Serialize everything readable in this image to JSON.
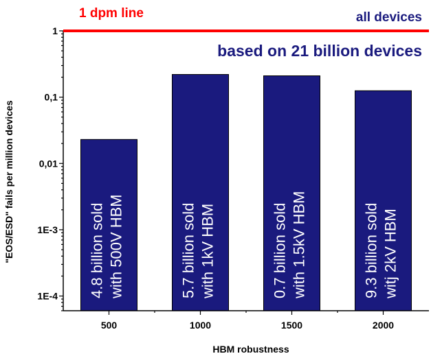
{
  "chart_data": {
    "type": "bar",
    "categories": [
      "500",
      "1000",
      "1500",
      "2000"
    ],
    "values": [
      0.023,
      0.22,
      0.21,
      0.125
    ],
    "bar_labels": [
      [
        "4.8 billion sold",
        "with 500V HBM"
      ],
      [
        "5.7 billion sold",
        "with 1kV HBM"
      ],
      [
        "0.7 billion sold",
        "with 1.5kV HBM"
      ],
      [
        "9.3 billion sold",
        "witj 2kV HBM"
      ]
    ],
    "xlabel": "HBM robustness",
    "ylabel": "\"EOS/ESD\" fails per million devices",
    "yscale": "log",
    "ylim": [
      6e-05,
      1
    ],
    "yticks": [
      {
        "value": 1,
        "label": "1"
      },
      {
        "value": 0.1,
        "label": "0,1"
      },
      {
        "value": 0.01,
        "label": "0,01"
      },
      {
        "value": 0.001,
        "label": "1E-3"
      },
      {
        "value": 0.0001,
        "label": "1E-4"
      }
    ],
    "reference_line": {
      "value": 1,
      "label": "1 dpm line"
    },
    "annotations": [
      "all devices",
      "based on 21 billion devices"
    ],
    "grid": false,
    "colors": {
      "bar": "#1a1a7e",
      "reference_line": "#ff0000",
      "annotation_blue": "#1a1a7e",
      "annotation_red": "#ff0000"
    }
  }
}
